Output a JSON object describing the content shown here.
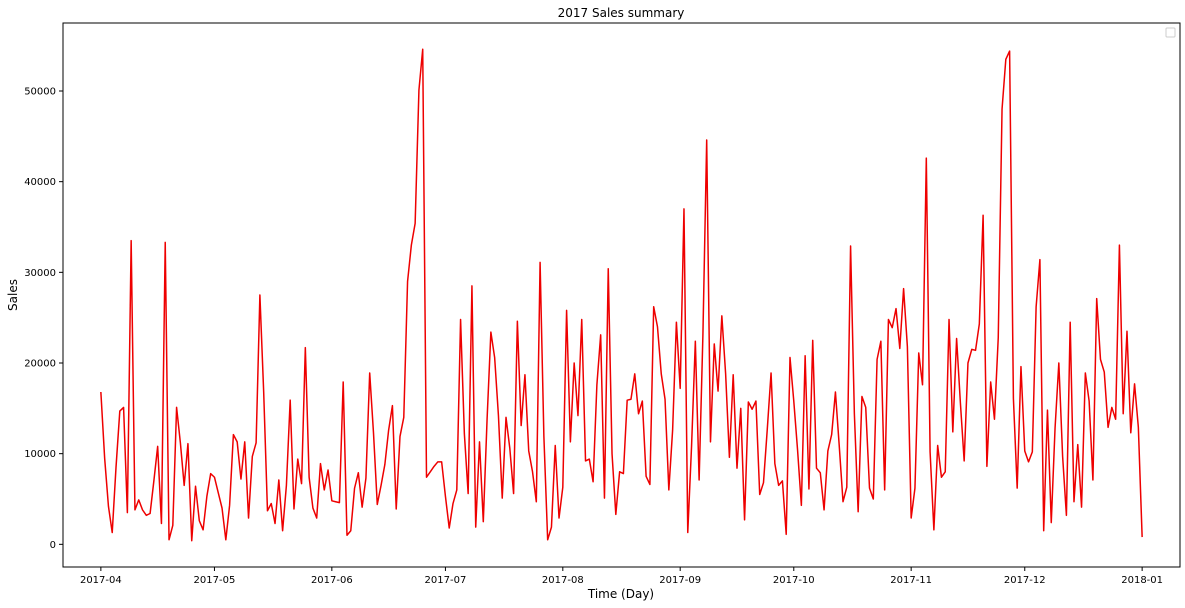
{
  "chart_data": {
    "type": "line",
    "title": "2017 Sales summary",
    "xlabel": "Time (Day)",
    "ylabel": "Sales",
    "ylim": [
      -2500,
      57500
    ],
    "xlim": [
      "2017-03-22",
      "2018-01-11"
    ],
    "grid": false,
    "legend": "top-right",
    "line_color": "#ee0000",
    "x_ticks": [
      "2017-04",
      "2017-05",
      "2017-06",
      "2017-07",
      "2017-08",
      "2017-09",
      "2017-10",
      "2017-11",
      "2017-12",
      "2018-01"
    ],
    "y_ticks": [
      0,
      10000,
      20000,
      30000,
      40000,
      50000
    ],
    "series": [
      {
        "name": "Sales",
        "start": "2017-04-01",
        "values": [
          16800,
          9500,
          4200,
          1300,
          8500,
          14700,
          15100,
          3500,
          33500,
          3800,
          4900,
          3800,
          3200,
          3400,
          7000,
          10800,
          2300,
          33300,
          500,
          2100,
          15100,
          11200,
          6500,
          11100,
          400,
          6400,
          2600,
          1600,
          5300,
          7800,
          7400,
          5700,
          4000,
          500,
          4300,
          12100,
          11300,
          7200,
          11300,
          2900,
          9700,
          11200,
          27500,
          16800,
          3700,
          4500,
          2300,
          7100,
          1500,
          6500,
          15900,
          3900,
          9400,
          6700,
          21700,
          7400,
          4000,
          2900,
          8900,
          6000,
          8200,
          4800,
          4700,
          4600,
          17900,
          1000,
          1500,
          6200,
          7900,
          4100,
          7300,
          18900,
          12300,
          4400,
          6500,
          8800,
          12600,
          15300,
          3900,
          11900,
          14000,
          29000,
          33000,
          35400,
          50100,
          54600,
          7400,
          8000,
          8600,
          9100,
          9100,
          5300,
          1800,
          4500,
          6000,
          24800,
          12200,
          5600,
          28500,
          1900,
          11300,
          2500,
          13800,
          23400,
          20600,
          14200,
          5100,
          14000,
          10600,
          5600,
          24600,
          13100,
          18700,
          10300,
          8000,
          4700,
          31100,
          11900,
          500,
          1900,
          10900,
          2900,
          6300,
          25800,
          11300,
          20000,
          14200,
          24800,
          9200,
          9400,
          6900,
          17600,
          23100,
          5100,
          30400,
          10000,
          3300,
          8000,
          7800,
          15900,
          16000,
          18800,
          14400,
          15800,
          7500,
          6600,
          26200,
          24000,
          18800,
          16000,
          6000,
          12600,
          24500,
          17200,
          37000,
          1300,
          10800,
          22400,
          7100,
          23100,
          44600,
          11300,
          22100,
          16900,
          25200,
          18800,
          9600,
          18700,
          8400,
          15000,
          2700,
          15700,
          14900,
          15800,
          5500,
          6800,
          12700,
          18900,
          8900,
          6500,
          7000,
          1100,
          20600,
          15800,
          10400,
          4300,
          20800,
          6100,
          22500,
          8400,
          7900,
          3800,
          10300,
          12100,
          16800,
          10900,
          4700,
          6300,
          32900,
          14400,
          3600,
          16300,
          15100,
          6200,
          5000,
          20400,
          22400,
          6000,
          24800,
          23900,
          26000,
          21600,
          28200,
          21800,
          2900,
          6200,
          21100,
          17600,
          42600,
          10200,
          1600,
          10900,
          7400,
          8000,
          24800,
          12400,
          22700,
          15600,
          9200,
          20000,
          21500,
          21400,
          24300,
          36300,
          8600,
          17900,
          13800,
          22800,
          48000,
          53500,
          54400,
          16100,
          6200,
          19600,
          10300,
          9100,
          10200,
          26200,
          31400,
          1500,
          14800,
          2400,
          12800,
          20000,
          9700,
          3200,
          24500,
          4700,
          11000,
          4100,
          18900,
          15800,
          7100,
          27100,
          20400,
          19000,
          12900,
          15100,
          13800,
          33000,
          14400,
          23500,
          12300,
          17700,
          12900,
          800
        ]
      }
    ]
  }
}
